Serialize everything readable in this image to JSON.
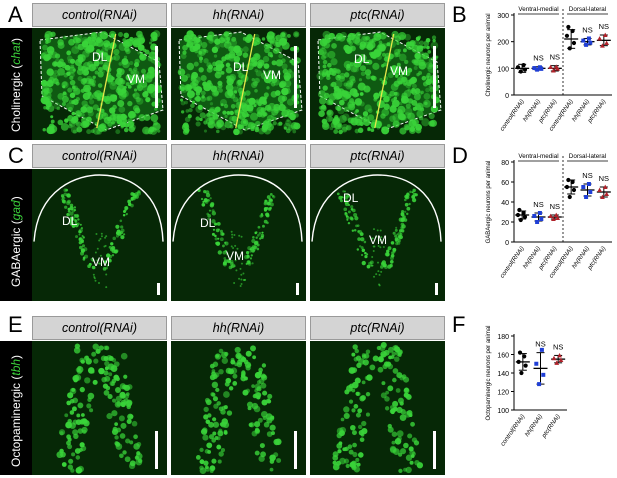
{
  "panel_letters": [
    "A",
    "B",
    "C",
    "D",
    "E",
    "F"
  ],
  "column_headers": [
    "control(RNAi)",
    "hh(RNAi)",
    "ptc(RNAi)"
  ],
  "rows": [
    {
      "label_prefix": "Cholinergic (",
      "label_gene": "chat",
      "label_suffix": ")"
    },
    {
      "label_prefix": "GABAergic (",
      "label_gene": "gad",
      "label_suffix": ")"
    },
    {
      "label_prefix": "Octopaminergic (",
      "label_gene": "tbh",
      "label_suffix": ")"
    }
  ],
  "region_labels": {
    "dl": "DL",
    "vm": "VM"
  },
  "colors": {
    "control": "#000000",
    "hh": "#1f3fd6",
    "ptc": "#b0222a",
    "signal": "#39d339",
    "micro_bg": "#062806"
  },
  "chart_data": [
    {
      "panel": "B",
      "type": "scatter",
      "ylabel": "Cholinergic neurons per animal",
      "ylim": [
        0,
        300
      ],
      "yticks": [
        0,
        100,
        200,
        300
      ],
      "groups": [
        {
          "label": "Ventral-medial"
        },
        {
          "label": "Dorsal-lateral"
        }
      ],
      "categories": [
        "control(RNAi)",
        "hh(RNAi)",
        "ptc(RNAi)",
        "control(RNAi)",
        "hh(RNAi)",
        "ptc(RNAi)"
      ],
      "series": [
        {
          "mean": 100,
          "sd": 15,
          "points": [
            88,
            95,
            104,
            112
          ]
        },
        {
          "mean": 100,
          "sd": 6,
          "points": [
            95,
            98,
            101,
            104
          ]
        },
        {
          "mean": 100,
          "sd": 10,
          "points": [
            92,
            99,
            105,
            106
          ]
        },
        {
          "mean": 210,
          "sd": 35,
          "points": [
            175,
            195,
            222,
            240,
            255
          ]
        },
        {
          "mean": 200,
          "sd": 12,
          "points": [
            188,
            196,
            204,
            212
          ]
        },
        {
          "mean": 205,
          "sd": 20,
          "points": [
            185,
            195,
            212,
            225
          ]
        }
      ],
      "annotations": [
        "",
        "NS",
        "NS",
        "",
        "NS",
        "NS"
      ]
    },
    {
      "panel": "D",
      "type": "scatter",
      "ylabel": "GABAergic neurons per animal",
      "ylim": [
        0,
        80
      ],
      "yticks": [
        0,
        20,
        40,
        60,
        80
      ],
      "groups": [
        {
          "label": "Ventral-medial"
        },
        {
          "label": "Dorsal-lateral"
        }
      ],
      "categories": [
        "control(RNAi)",
        "hh(RNAi)",
        "ptc(RNAi)",
        "control(RNAi)",
        "hh(RNAi)",
        "ptc(RNAi)"
      ],
      "series": [
        {
          "mean": 27,
          "sd": 4,
          "points": [
            22,
            25,
            27,
            29,
            32
          ]
        },
        {
          "mean": 25,
          "sd": 4,
          "points": [
            20,
            23,
            26,
            29
          ]
        },
        {
          "mean": 25,
          "sd": 2,
          "points": [
            23,
            24,
            26,
            27
          ]
        },
        {
          "mean": 55,
          "sd": 7,
          "points": [
            45,
            52,
            55,
            60,
            62
          ]
        },
        {
          "mean": 52,
          "sd": 6,
          "points": [
            45,
            50,
            55,
            58
          ]
        },
        {
          "mean": 50,
          "sd": 5,
          "points": [
            45,
            48,
            52,
            55
          ]
        }
      ],
      "annotations": [
        "",
        "NS",
        "NS",
        "",
        "NS",
        "NS"
      ]
    },
    {
      "panel": "F",
      "type": "scatter",
      "ylabel": "Octopaminergic neurons per animal",
      "ylim": [
        100,
        180
      ],
      "yticks": [
        100,
        120,
        140,
        160,
        180
      ],
      "groups": [],
      "categories": [
        "control(RNAi)",
        "hh(RNAi)",
        "ptc(RNAi)"
      ],
      "series": [
        {
          "mean": 152,
          "sd": 9,
          "points": [
            140,
            148,
            152,
            158,
            162
          ]
        },
        {
          "mean": 145,
          "sd": 17,
          "points": [
            128,
            138,
            150,
            165
          ]
        },
        {
          "mean": 155,
          "sd": 4,
          "points": [
            151,
            154,
            156,
            159
          ]
        }
      ],
      "annotations": [
        "",
        "NS",
        "NS"
      ]
    }
  ]
}
